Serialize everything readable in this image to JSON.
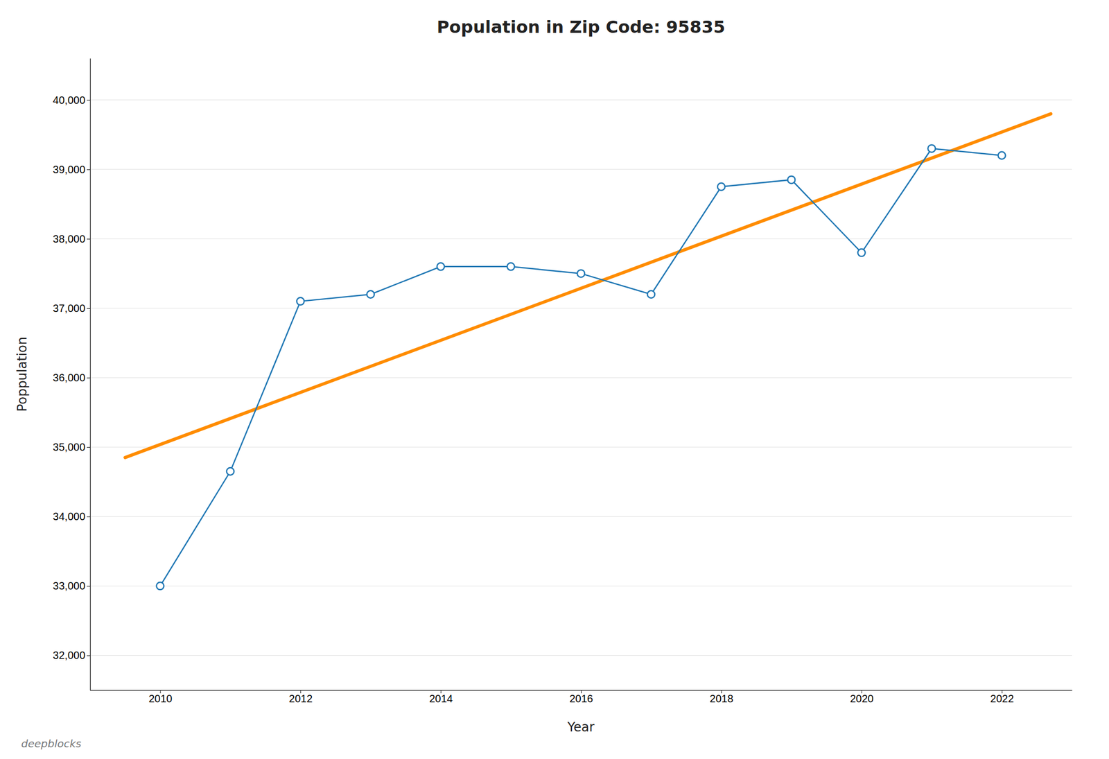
{
  "chart_data": {
    "type": "line",
    "title": "Population in Zip Code: 95835",
    "x_label": "Year",
    "y_label": "Poppulation",
    "annotations": [
      "deepblocks"
    ],
    "x": [
      2010,
      2011,
      2012,
      2013,
      2014,
      2015,
      2016,
      2017,
      2018,
      2019,
      2020,
      2021,
      2022
    ],
    "series": [
      {
        "values": [
          33000,
          34650,
          37100,
          37200,
          37600,
          37600,
          37500,
          37200,
          38750,
          38850,
          37800,
          39300,
          39200
        ],
        "marker": "circle",
        "line_style": "solid"
      },
      {
        "x": [
          2009.5,
          2022.7
        ],
        "values": [
          34850,
          39800
        ],
        "color": "#ff8c00",
        "line_style": "solid"
      }
    ],
    "xlim": [
      2009.0,
      2023.0
    ],
    "ylim": [
      31500,
      40600
    ],
    "xticks": [
      2010,
      2012,
      2014,
      2016,
      2018,
      2020,
      2022
    ],
    "yticks": [
      {
        "value": 32000,
        "label": "32,000"
      },
      {
        "value": 33000,
        "label": "33,000"
      },
      {
        "value": 34000,
        "label": "34,000"
      },
      {
        "value": 35000,
        "label": "35,000"
      },
      {
        "value": 36000,
        "label": "36,000"
      },
      {
        "value": 37000,
        "label": "37,000"
      },
      {
        "value": 38000,
        "label": "38,000"
      },
      {
        "value": 39000,
        "label": "39,000"
      },
      {
        "value": 40000,
        "label": "40,000"
      }
    ],
    "grid": true
  }
}
